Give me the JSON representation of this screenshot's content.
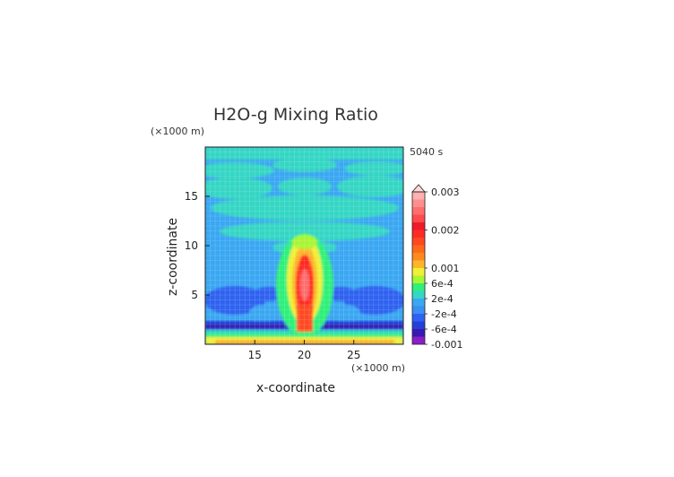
{
  "chart_data": {
    "type": "heatmap",
    "title": "H2O-g Mixing Ratio",
    "xlabel": "x-coordinate",
    "ylabel": "z-coordinate",
    "x_unit": "(×1000 m)",
    "y_unit": "(×1000 m)",
    "time_label": "5040 s",
    "xlim": [
      10,
      30
    ],
    "ylim": [
      0,
      20
    ],
    "x_ticks": [
      15,
      20,
      25
    ],
    "y_ticks": [
      5,
      10,
      15
    ],
    "colorbar": {
      "labels": [
        {
          "text": "0.003",
          "value": 0.003
        },
        {
          "text": "0.002",
          "value": 0.002
        },
        {
          "text": "0.001",
          "value": 0.001
        },
        {
          "text": "6e-4",
          "value": 0.0006
        },
        {
          "text": "2e-4",
          "value": 0.0002
        },
        {
          "text": "-2e-4",
          "value": -0.0002
        },
        {
          "text": "-6e-4",
          "value": -0.0006
        },
        {
          "text": "-0.001",
          "value": -0.001
        }
      ],
      "levels": [
        -0.001,
        -0.0008,
        -0.0006,
        -0.0004,
        -0.0002,
        0,
        0.0002,
        0.0004,
        0.0006,
        0.0008,
        0.001,
        0.0012,
        0.0014,
        0.0016,
        0.0018,
        0.002,
        0.0022,
        0.0024,
        0.0026,
        0.0028,
        0.003
      ],
      "colors": [
        "#8a1fc9",
        "#3a19b0",
        "#2440d9",
        "#2f62f0",
        "#3b8ef2",
        "#3aa7f2",
        "#36d6c4",
        "#2ef07a",
        "#a8f534",
        "#f0f035",
        "#ffb42a",
        "#ff8a1e",
        "#ff6a1a",
        "#ff4820",
        "#ff2a24",
        "#f01a2a",
        "#ff4b4b",
        "#ff6e6e",
        "#ff8f8f",
        "#ffb0b0"
      ]
    },
    "features": [
      {
        "name": "background",
        "value": -0.0002
      },
      {
        "name": "upper layer bands",
        "value": 0.0001
      },
      {
        "name": "mid-level layer",
        "value": 0.0001
      },
      {
        "name": "central plume",
        "value": 0.0025
      },
      {
        "name": "low-level dry regions",
        "value": -0.0006
      },
      {
        "name": "surface layer",
        "value": 0.0008
      }
    ]
  }
}
